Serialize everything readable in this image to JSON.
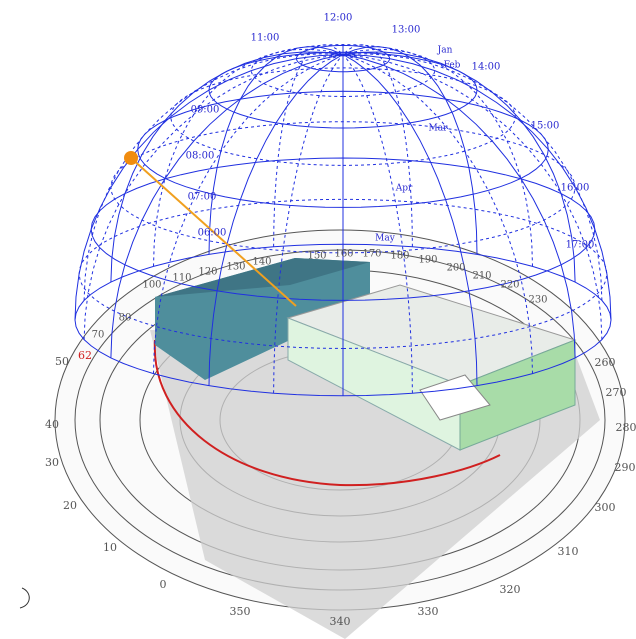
{
  "hour_labels": [
    "11:00",
    "12:00",
    "13:00",
    "14:00",
    "15:00",
    "16:00",
    "17:00",
    "09:00",
    "08:00",
    "07:00",
    "06:00"
  ],
  "month_labels": [
    "Jan",
    "Feb",
    "Mar",
    "Apr",
    "May"
  ],
  "azimuth_labels_lower": [
    50,
    40,
    30,
    20,
    10,
    0,
    350,
    340,
    330,
    320,
    310,
    300,
    290,
    280,
    270,
    260
  ],
  "azimuth_labels_upper": [
    70,
    80,
    100,
    110,
    120,
    130,
    140,
    150,
    160,
    170,
    180,
    190,
    200,
    210,
    220,
    230
  ],
  "altitude_marker": "62"
}
